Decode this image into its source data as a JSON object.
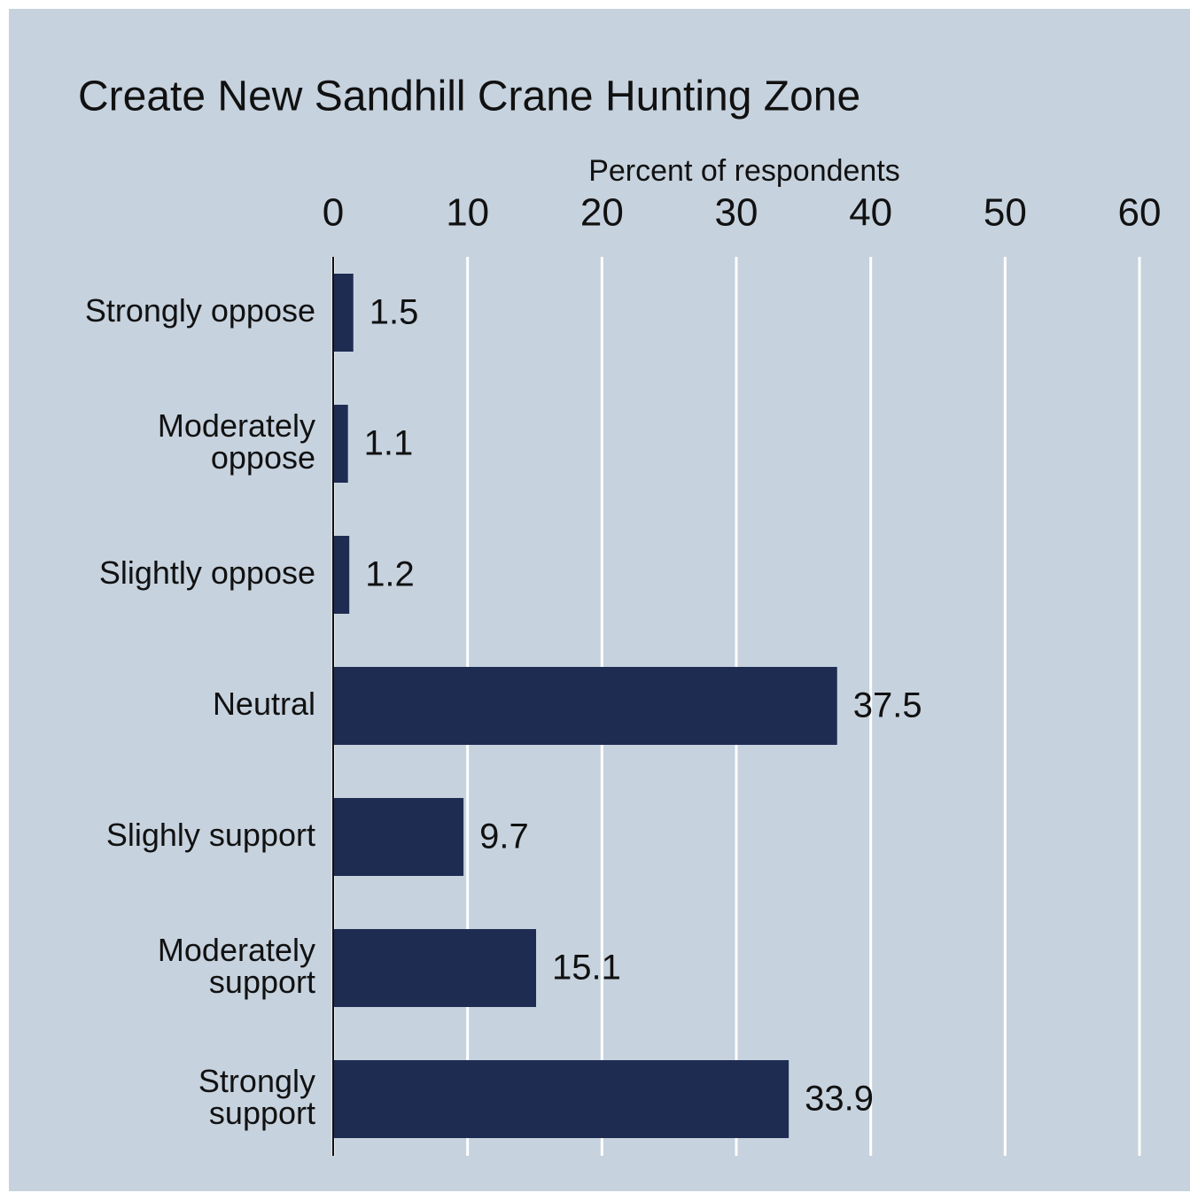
{
  "chart_data": {
    "type": "bar",
    "orientation": "horizontal",
    "title": "Create New Sandhill Crane Hunting Zone",
    "x_label": "Percent of respondents",
    "categories": [
      [
        "Strongly oppose"
      ],
      [
        "Moderately",
        "oppose"
      ],
      [
        "Slightly oppose"
      ],
      [
        "Neutral"
      ],
      [
        "Slighly support"
      ],
      [
        "Moderately",
        "support"
      ],
      [
        "Strongly",
        "support"
      ]
    ],
    "values": [
      1.5,
      1.1,
      1.2,
      37.5,
      9.7,
      15.1,
      33.9
    ],
    "color": "#1f2c52",
    "xlim": [
      0,
      60
    ],
    "xticks": [
      0,
      10,
      20,
      30,
      40,
      50,
      60
    ],
    "grid": true
  }
}
